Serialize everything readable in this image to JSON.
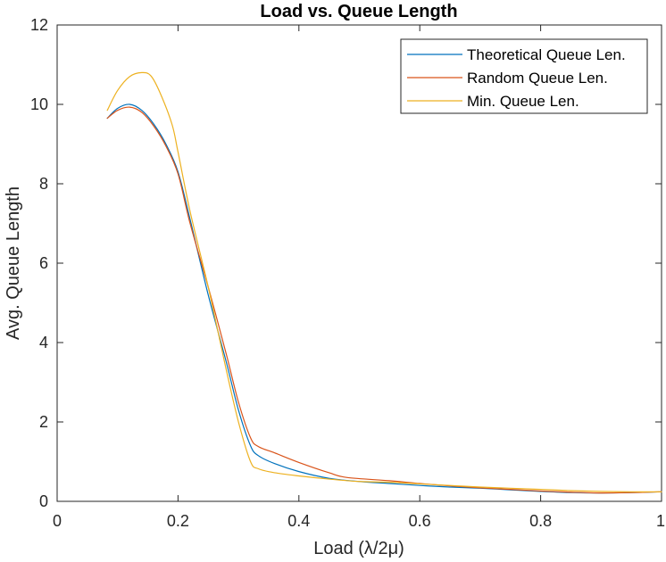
{
  "chart_data": {
    "type": "line",
    "title": "Load vs. Queue Length",
    "xlabel": "Load (λ/2μ)",
    "ylabel": "Avg. Queue Length",
    "xlim": [
      0,
      1
    ],
    "ylim": [
      0,
      12
    ],
    "xticks": [
      0,
      0.2,
      0.4,
      0.6,
      0.8,
      1
    ],
    "xtick_labels": [
      "0",
      "0.2",
      "0.4",
      "0.6",
      "0.8",
      "1"
    ],
    "yticks": [
      0,
      2,
      4,
      6,
      8,
      10,
      12
    ],
    "ytick_labels": [
      "0",
      "2",
      "4",
      "6",
      "8",
      "10",
      "12"
    ],
    "grid": false,
    "legend_position": "top-right",
    "series": [
      {
        "name": "Theoretical Queue Len.",
        "color": "#0072BD",
        "x": [
          0.083,
          0.1,
          0.12,
          0.14,
          0.16,
          0.18,
          0.2,
          0.22,
          0.25,
          0.28,
          0.3,
          0.32,
          0.333,
          0.36,
          0.4,
          0.45,
          0.5,
          0.55,
          0.6,
          0.65,
          0.7,
          0.75,
          0.8,
          0.85,
          0.9,
          0.95,
          1.0
        ],
        "y": [
          9.65,
          9.9,
          10.0,
          9.85,
          9.5,
          9.0,
          8.3,
          7.1,
          5.2,
          3.5,
          2.3,
          1.4,
          1.15,
          0.95,
          0.75,
          0.58,
          0.5,
          0.45,
          0.4,
          0.36,
          0.33,
          0.29,
          0.25,
          0.22,
          0.21,
          0.22,
          0.24
        ]
      },
      {
        "name": "Random Queue Len.",
        "color": "#D95319",
        "x": [
          0.083,
          0.1,
          0.12,
          0.14,
          0.16,
          0.18,
          0.2,
          0.22,
          0.25,
          0.28,
          0.3,
          0.32,
          0.333,
          0.36,
          0.4,
          0.45,
          0.48,
          0.55,
          0.6,
          0.65,
          0.7,
          0.75,
          0.8,
          0.85,
          0.9,
          0.95,
          1.0
        ],
        "y": [
          9.65,
          9.85,
          9.93,
          9.8,
          9.45,
          8.95,
          8.25,
          7.0,
          5.4,
          3.7,
          2.5,
          1.6,
          1.38,
          1.22,
          0.98,
          0.72,
          0.6,
          0.52,
          0.45,
          0.39,
          0.34,
          0.3,
          0.26,
          0.23,
          0.21,
          0.22,
          0.24
        ]
      },
      {
        "name": "Min. Queue Len.",
        "color": "#EDB120",
        "x": [
          0.083,
          0.1,
          0.12,
          0.14,
          0.155,
          0.17,
          0.19,
          0.2,
          0.22,
          0.25,
          0.28,
          0.3,
          0.32,
          0.333,
          0.36,
          0.4,
          0.45,
          0.5,
          0.55,
          0.6,
          0.65,
          0.7,
          0.75,
          0.8,
          0.85,
          0.9,
          0.95,
          1.0
        ],
        "y": [
          9.85,
          10.35,
          10.7,
          10.8,
          10.72,
          10.3,
          9.5,
          8.8,
          7.3,
          5.4,
          3.3,
          2.0,
          1.0,
          0.82,
          0.72,
          0.64,
          0.56,
          0.5,
          0.48,
          0.44,
          0.4,
          0.36,
          0.33,
          0.3,
          0.27,
          0.25,
          0.24,
          0.24
        ]
      }
    ]
  }
}
